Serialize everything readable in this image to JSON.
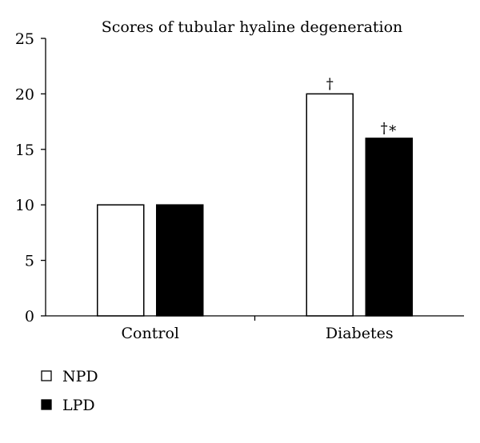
{
  "chart_data": {
    "type": "bar",
    "title": "Scores of tubular hyaline degeneration",
    "xlabel": "",
    "ylabel": "",
    "categories": [
      "Control",
      "Diabetes"
    ],
    "series": [
      {
        "name": "NPD",
        "values": [
          10,
          20
        ],
        "color": "#ffffff",
        "stroke": "#000000"
      },
      {
        "name": "LPD",
        "values": [
          10,
          16
        ],
        "color": "#000000",
        "stroke": "#000000"
      }
    ],
    "annotations": [
      {
        "category": "Diabetes",
        "series": "NPD",
        "text": "†"
      },
      {
        "category": "Diabetes",
        "series": "LPD",
        "text": "†∗"
      }
    ],
    "ylim": [
      0,
      25
    ],
    "yticks": [
      0,
      5,
      10,
      15,
      20,
      25
    ],
    "grid": false,
    "legend_position": "bottom-left"
  }
}
